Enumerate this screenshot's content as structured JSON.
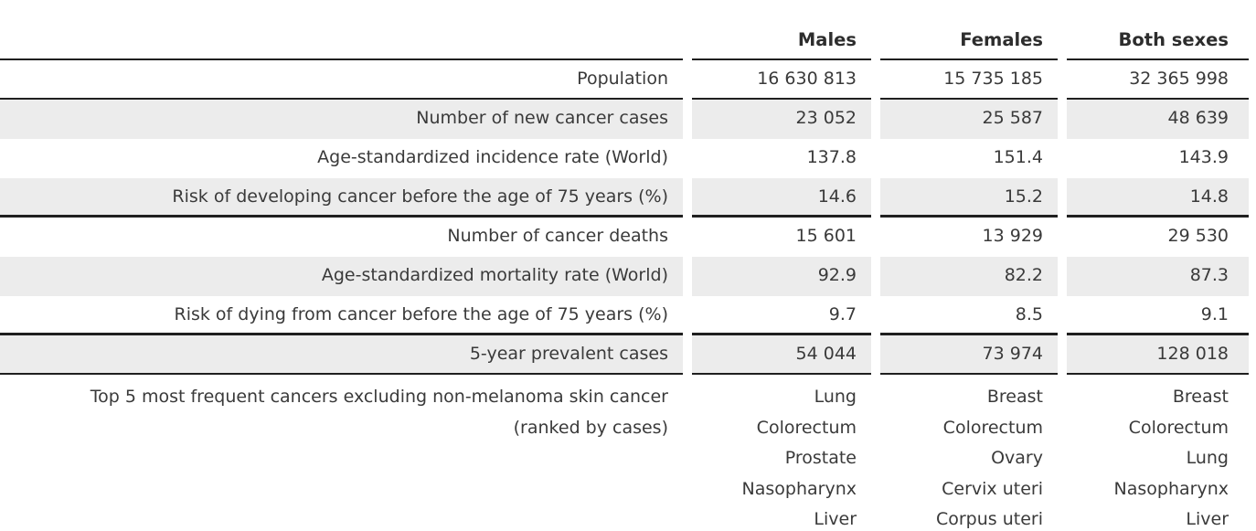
{
  "chart_data": {
    "type": "table",
    "columns": {
      "c1": "Males",
      "c2": "Females",
      "c3": "Both sexes"
    },
    "rows": [
      {
        "label": "Population",
        "males": "16 630 813",
        "females": "15 735 185",
        "both": "32 365 998"
      },
      {
        "label": "Number of new cancer cases",
        "males": "23 052",
        "females": "25 587",
        "both": "48 639"
      },
      {
        "label": "Age-standardized incidence rate (World)",
        "males": "137.8",
        "females": "151.4",
        "both": "143.9"
      },
      {
        "label": "Risk of developing cancer before the age of 75 years (%)",
        "males": "14.6",
        "females": "15.2",
        "both": "14.8"
      },
      {
        "label": "Number of cancer deaths",
        "males": "15 601",
        "females": "13 929",
        "both": "29 530"
      },
      {
        "label": "Age-standardized mortality rate (World)",
        "males": "92.9",
        "females": "82.2",
        "both": "87.3"
      },
      {
        "label": "Risk of dying from cancer before the age of 75 years (%)",
        "males": "9.7",
        "females": "8.5",
        "both": "9.1"
      },
      {
        "label": "5-year prevalent cases",
        "males": "54 044",
        "females": "73 974",
        "both": "128 018"
      }
    ],
    "top5": {
      "label_line1": "Top 5 most frequent cancers excluding non-melanoma skin cancer",
      "label_line2": "(ranked by cases)",
      "males": [
        "Lung",
        "Colorectum",
        "Prostate",
        "Nasopharynx",
        "Liver"
      ],
      "females": [
        "Breast",
        "Colorectum",
        "Ovary",
        "Cervix uteri",
        "Corpus uteri"
      ],
      "both": [
        "Breast",
        "Colorectum",
        "Lung",
        "Nasopharynx",
        "Liver"
      ]
    },
    "layout": {
      "shaded_row_indices": [
        1,
        3,
        5,
        7
      ],
      "shade_color": "#ececec",
      "rule_color": "#1f1f1f",
      "text_color": "#3a3a3a"
    }
  }
}
